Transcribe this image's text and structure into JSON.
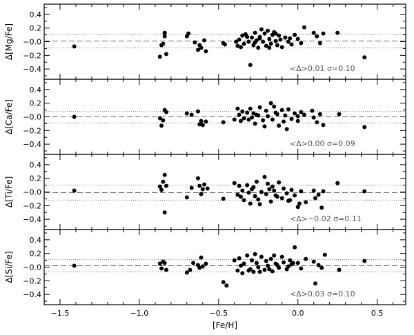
{
  "chart_data": [
    {
      "type": "scatter",
      "ylabel": "Δ[Mg/Fe]",
      "xlim": [
        -1.6,
        0.68
      ],
      "ylim": [
        -0.55,
        0.55
      ],
      "yticks": [
        -0.4,
        -0.2,
        0.0,
        0.2,
        0.4
      ],
      "ytick_labels": [
        "−0.4",
        "−0.2",
        "−0.0",
        "0.2",
        "0.4"
      ],
      "mean_line": 0.01,
      "sigma_lines": [
        0.11,
        -0.09
      ],
      "stat_text": "<Δ>0.01  σ=0.10",
      "x": [
        -1.41,
        -0.87,
        -0.85,
        -0.84,
        -0.83,
        -0.7,
        -0.69,
        -0.62,
        -0.61,
        -0.59,
        -0.58,
        -0.47,
        -0.46,
        -0.39,
        -0.38,
        -0.37,
        -0.36,
        -0.35,
        -0.34,
        -0.33,
        -0.31,
        -0.3,
        -0.29,
        -0.28,
        -0.27,
        -0.26,
        -0.25,
        -0.24,
        -0.23,
        -0.22,
        -0.21,
        -0.2,
        -0.19,
        -0.18,
        -0.17,
        -0.16,
        -0.15,
        -0.14,
        -0.13,
        -0.12,
        -0.11,
        -0.1,
        -0.08,
        -0.06,
        -0.04,
        -0.02,
        0.0,
        0.02,
        0.04,
        0.1,
        0.12,
        0.14,
        0.16,
        0.25,
        0.42,
        -0.86,
        -0.84,
        -0.65,
        -0.63,
        -0.32,
        -0.27,
        -0.24,
        -0.18,
        -0.14,
        -0.05
      ],
      "y": [
        -0.07,
        -0.22,
        -0.03,
        0.13,
        -0.18,
        0.08,
        0.12,
        -0.05,
        -0.09,
        0.02,
        -0.14,
        -0.02,
        -0.04,
        0.0,
        -0.06,
        0.03,
        -0.08,
        0.09,
        -0.03,
        0.11,
        0.0,
        -0.34,
        0.06,
        -0.05,
        0.13,
        0.02,
        -0.09,
        0.07,
        0.18,
        0.0,
        0.12,
        -0.06,
        0.16,
        0.04,
        -0.03,
        0.1,
        0.14,
        0.01,
        -0.05,
        0.09,
        0.03,
        -0.08,
        0.06,
        0.0,
        -0.04,
        0.1,
        0.04,
        -0.02,
        0.21,
        0.13,
        0.08,
        -0.02,
        0.12,
        0.13,
        -0.23,
        -0.05,
        0.08,
        -0.01,
        -0.12,
        0.07,
        -0.01,
        0.05,
        -0.09,
        0.12,
        0.05
      ]
    },
    {
      "type": "scatter",
      "ylabel": "Δ[Ca/Fe]",
      "xlim": [
        -1.6,
        0.68
      ],
      "ylim": [
        -0.55,
        0.55
      ],
      "yticks": [
        -0.4,
        -0.2,
        0.0,
        0.2,
        0.4
      ],
      "ytick_labels": [
        "−0.4",
        "−0.2",
        "−0.0",
        "0.2",
        "0.4"
      ],
      "mean_line": 0.0,
      "sigma_lines": [
        0.08,
        -0.09
      ],
      "stat_text": "<Δ>0.00  σ=0.09",
      "x": [
        -1.41,
        -0.87,
        -0.86,
        -0.84,
        -0.83,
        -0.7,
        -0.67,
        -0.63,
        -0.61,
        -0.6,
        -0.58,
        -0.47,
        -0.4,
        -0.38,
        -0.37,
        -0.36,
        -0.35,
        -0.34,
        -0.32,
        -0.3,
        -0.29,
        -0.28,
        -0.27,
        -0.26,
        -0.24,
        -0.22,
        -0.2,
        -0.19,
        -0.17,
        -0.16,
        -0.15,
        -0.14,
        -0.12,
        -0.1,
        -0.09,
        -0.08,
        -0.06,
        -0.04,
        -0.02,
        0.0,
        0.02,
        0.04,
        0.09,
        0.1,
        0.12,
        0.14,
        0.16,
        0.26,
        0.42,
        -0.85,
        -0.62,
        -0.31,
        -0.25,
        -0.21,
        -0.13,
        -0.07,
        0.0
      ],
      "y": [
        0.0,
        -0.02,
        -0.13,
        0.1,
        0.07,
        0.05,
        0.03,
        0.08,
        -0.06,
        -0.12,
        -0.07,
        -0.08,
        -0.04,
        0.12,
        0.03,
        -0.06,
        0.08,
        -0.02,
        0.06,
        0.12,
        -0.01,
        0.05,
        -0.1,
        0.03,
        0.14,
        -0.05,
        0.09,
        0.01,
        0.2,
        -0.04,
        0.15,
        0.06,
        -0.13,
        0.1,
        -0.07,
        0.02,
        0.11,
        -0.03,
        0.05,
        -0.06,
        0.07,
        0.03,
        0.09,
        -0.01,
        -0.08,
        0.04,
        -0.12,
        0.04,
        -0.15,
        -0.05,
        -0.11,
        -0.04,
        0.02,
        -0.14,
        0.04,
        -0.18,
        0.01
      ]
    },
    {
      "type": "scatter",
      "ylabel": "Δ[Ti/Fe]",
      "xlim": [
        -1.6,
        0.68
      ],
      "ylim": [
        -0.55,
        0.55
      ],
      "yticks": [
        -0.4,
        -0.2,
        0.0,
        0.2,
        0.4
      ],
      "ytick_labels": [
        "−0.4",
        "−0.2",
        "−0.0",
        "0.2",
        "0.4"
      ],
      "mean_line": -0.01,
      "sigma_lines": [
        0.1,
        -0.12
      ],
      "stat_text": "<Δ>−0.02  σ=0.11",
      "x": [
        -1.41,
        -0.87,
        -0.86,
        -0.84,
        -0.84,
        -0.83,
        -0.7,
        -0.67,
        -0.63,
        -0.61,
        -0.6,
        -0.59,
        -0.57,
        -0.47,
        -0.4,
        -0.38,
        -0.37,
        -0.36,
        -0.35,
        -0.34,
        -0.32,
        -0.3,
        -0.29,
        -0.28,
        -0.27,
        -0.26,
        -0.25,
        -0.23,
        -0.21,
        -0.2,
        -0.19,
        -0.17,
        -0.16,
        -0.15,
        -0.13,
        -0.12,
        -0.1,
        -0.09,
        -0.07,
        -0.05,
        -0.04,
        -0.02,
        0.0,
        0.02,
        0.05,
        0.1,
        0.11,
        0.13,
        0.15,
        0.16,
        0.25,
        0.42,
        -0.85,
        -0.62,
        -0.31,
        -0.24,
        -0.18,
        -0.14,
        -0.06,
        0.01
      ],
      "y": [
        0.02,
        0.08,
        0.03,
        0.25,
        -0.3,
        0.09,
        -0.08,
        0.06,
        0.2,
        -0.03,
        0.04,
        0.11,
        0.05,
        -0.1,
        0.13,
        -0.04,
        0.09,
        -0.07,
        0.02,
        -0.12,
        0.1,
        -0.17,
        0.04,
        0.07,
        -0.06,
        0.15,
        -0.11,
        0.0,
        0.22,
        -0.03,
        0.12,
        -0.14,
        0.08,
        0.02,
        -0.07,
        0.14,
        -0.09,
        0.05,
        -0.02,
        -0.12,
        0.03,
        -0.05,
        -0.22,
        0.01,
        -0.15,
        0.02,
        -0.09,
        -0.04,
        -0.23,
        0.01,
        0.13,
        0.01,
        0.15,
        0.09,
        -0.01,
        -0.18,
        0.04,
        -0.05,
        -0.13,
        -0.17
      ]
    },
    {
      "type": "scatter",
      "ylabel": "Δ[Si/Fe]",
      "xlim": [
        -1.6,
        0.68
      ],
      "ylim": [
        -0.55,
        0.55
      ],
      "yticks": [
        -0.4,
        -0.2,
        0.0,
        0.2,
        0.4
      ],
      "ytick_labels": [
        "−0.4",
        "−0.2",
        "−0.0",
        "0.2",
        "0.4"
      ],
      "mean_line": 0.02,
      "sigma_lines": [
        0.11,
        -0.07
      ],
      "stat_text": "<Δ>0.03  σ=0.10",
      "x": [
        -1.41,
        -0.87,
        -0.86,
        -0.84,
        -0.83,
        -0.7,
        -0.68,
        -0.66,
        -0.63,
        -0.61,
        -0.6,
        -0.58,
        -0.47,
        -0.45,
        -0.4,
        -0.38,
        -0.37,
        -0.36,
        -0.35,
        -0.34,
        -0.32,
        -0.3,
        -0.29,
        -0.28,
        -0.27,
        -0.26,
        -0.25,
        -0.23,
        -0.21,
        -0.2,
        -0.19,
        -0.17,
        -0.16,
        -0.15,
        -0.13,
        -0.12,
        -0.1,
        -0.09,
        -0.07,
        -0.05,
        -0.04,
        -0.02,
        0.0,
        0.02,
        0.05,
        0.1,
        0.11,
        0.13,
        0.15,
        0.17,
        0.26,
        0.42,
        -0.85,
        -0.62,
        -0.31,
        -0.24,
        -0.18,
        -0.14,
        -0.06,
        -0.03
      ],
      "y": [
        0.02,
        0.05,
        -0.02,
        0.06,
        -0.04,
        -0.08,
        -0.04,
        0.06,
        0.03,
        0.14,
        0.01,
        0.05,
        -0.22,
        -0.27,
        0.1,
        -0.05,
        0.13,
        0.02,
        -0.09,
        0.05,
        0.17,
        -0.03,
        0.1,
        -0.07,
        0.19,
        0.06,
        0.0,
        0.15,
        -0.04,
        0.09,
        0.02,
        0.12,
        -0.06,
        0.17,
        0.03,
        -0.01,
        0.15,
        0.07,
        -0.03,
        0.1,
        0.04,
        0.29,
        0.06,
        -0.02,
        0.12,
        0.08,
        -0.24,
        0.03,
        -0.01,
        0.18,
        -0.04,
        0.09,
        0.08,
        -0.01,
        -0.05,
        -0.07,
        -0.03,
        0.05,
        0.01,
        0.06
      ]
    }
  ],
  "x_axis": {
    "label": "[Fe/H]",
    "ticks": [
      -1.5,
      -1.0,
      -0.5,
      0.0,
      0.5
    ],
    "tick_labels": [
      "−1.5",
      "−1.0",
      "−0.5",
      "0.0",
      "0.5"
    ]
  }
}
